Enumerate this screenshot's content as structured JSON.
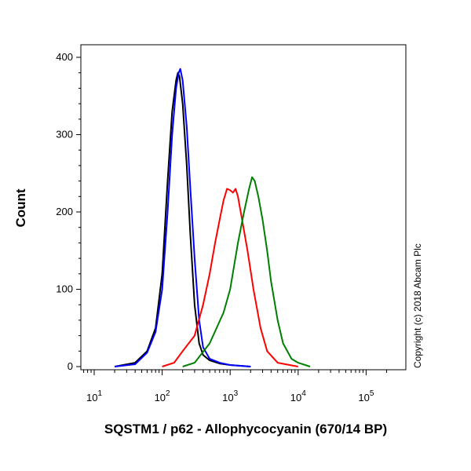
{
  "chart_data": {
    "type": "line",
    "xlabel": "SQSTM1 / p62 - Allophycocyanin (670/14 BP)",
    "ylabel": "Count",
    "x_scale": "log",
    "xlim": [
      1,
      200000
    ],
    "ylim": [
      0,
      400
    ],
    "x_ticks": [
      {
        "value": 10,
        "base": "10",
        "exp": "1"
      },
      {
        "value": 100,
        "base": "10",
        "exp": "2"
      },
      {
        "value": 1000,
        "base": "10",
        "exp": "3"
      },
      {
        "value": 10000,
        "base": "10",
        "exp": "4"
      },
      {
        "value": 100000,
        "base": "10",
        "exp": "5"
      }
    ],
    "y_ticks": [
      0,
      100,
      200,
      300,
      400
    ],
    "annotation": "Copyright (c) 2018 Abcam Plc",
    "grid": false,
    "legend": "none",
    "series": [
      {
        "color": "#000000",
        "points": [
          [
            20,
            0
          ],
          [
            40,
            5
          ],
          [
            60,
            20
          ],
          [
            80,
            50
          ],
          [
            100,
            120
          ],
          [
            120,
            240
          ],
          [
            140,
            330
          ],
          [
            160,
            370
          ],
          [
            170,
            380
          ],
          [
            180,
            375
          ],
          [
            200,
            340
          ],
          [
            230,
            260
          ],
          [
            260,
            170
          ],
          [
            300,
            80
          ],
          [
            350,
            30
          ],
          [
            400,
            15
          ],
          [
            500,
            8
          ],
          [
            700,
            4
          ],
          [
            1000,
            2
          ],
          [
            2000,
            0
          ]
        ]
      },
      {
        "color": "#0000ff",
        "points": [
          [
            20,
            0
          ],
          [
            40,
            3
          ],
          [
            60,
            18
          ],
          [
            80,
            45
          ],
          [
            100,
            100
          ],
          [
            120,
            200
          ],
          [
            140,
            300
          ],
          [
            160,
            360
          ],
          [
            175,
            380
          ],
          [
            185,
            385
          ],
          [
            200,
            370
          ],
          [
            230,
            310
          ],
          [
            260,
            230
          ],
          [
            300,
            140
          ],
          [
            350,
            60
          ],
          [
            400,
            25
          ],
          [
            500,
            10
          ],
          [
            700,
            5
          ],
          [
            1000,
            2
          ],
          [
            2000,
            0
          ]
        ]
      },
      {
        "color": "#ff0000",
        "points": [
          [
            100,
            0
          ],
          [
            150,
            5
          ],
          [
            200,
            20
          ],
          [
            300,
            40
          ],
          [
            400,
            80
          ],
          [
            500,
            120
          ],
          [
            600,
            160
          ],
          [
            700,
            190
          ],
          [
            800,
            215
          ],
          [
            900,
            230
          ],
          [
            1000,
            228
          ],
          [
            1100,
            225
          ],
          [
            1200,
            230
          ],
          [
            1300,
            220
          ],
          [
            1500,
            190
          ],
          [
            1800,
            150
          ],
          [
            2200,
            100
          ],
          [
            2800,
            50
          ],
          [
            3500,
            20
          ],
          [
            5000,
            5
          ],
          [
            10000,
            0
          ]
        ]
      },
      {
        "color": "#008000",
        "points": [
          [
            200,
            0
          ],
          [
            300,
            5
          ],
          [
            500,
            30
          ],
          [
            800,
            70
          ],
          [
            1000,
            100
          ],
          [
            1300,
            160
          ],
          [
            1600,
            200
          ],
          [
            1900,
            230
          ],
          [
            2100,
            245
          ],
          [
            2300,
            240
          ],
          [
            2600,
            220
          ],
          [
            3000,
            190
          ],
          [
            3500,
            150
          ],
          [
            4000,
            110
          ],
          [
            5000,
            60
          ],
          [
            6000,
            30
          ],
          [
            8000,
            10
          ],
          [
            10000,
            5
          ],
          [
            15000,
            0
          ]
        ]
      }
    ]
  }
}
